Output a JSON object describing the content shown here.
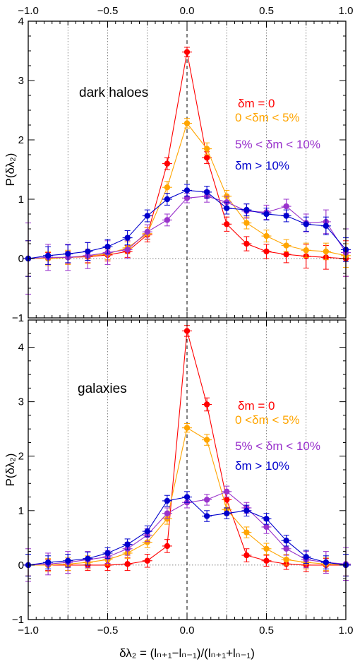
{
  "chart_data": [
    {
      "type": "line",
      "panel": "top",
      "annotation": "dark haloes",
      "ylabel": "P(δλ₂)",
      "xlabel": "",
      "xlim": [
        -1.0,
        1.0
      ],
      "ylim": [
        -1,
        4
      ],
      "x_ticks": [
        -1.0,
        -0.5,
        0.0,
        0.5,
        1.0
      ],
      "x_tick_labels": [
        "−1.0",
        "−0.5",
        "0.0",
        "0.5",
        "1.0"
      ],
      "y_ticks": [
        -1,
        0,
        1,
        2,
        3,
        4
      ],
      "y_tick_labels": [
        "−1",
        "0",
        "1",
        "2",
        "3",
        "4"
      ],
      "x": [
        -1.0,
        -0.875,
        -0.75,
        -0.625,
        -0.5,
        -0.375,
        -0.25,
        -0.125,
        0.0,
        0.125,
        0.25,
        0.375,
        0.5,
        0.625,
        0.75,
        0.875,
        1.0
      ],
      "series": [
        {
          "name": "δm = 0",
          "color": "#ff0000",
          "values": [
            0.0,
            0.0,
            0.02,
            0.03,
            0.06,
            0.12,
            0.4,
            1.6,
            3.48,
            1.7,
            0.58,
            0.25,
            0.12,
            0.07,
            0.04,
            0.02,
            0.0
          ],
          "yerr": [
            0.3,
            0.1,
            0.1,
            0.1,
            0.1,
            0.1,
            0.12,
            0.1,
            0.08,
            0.1,
            0.12,
            0.12,
            0.12,
            0.14,
            0.2,
            0.2,
            0.3
          ]
        },
        {
          "name": "0 <δm < 5%",
          "color": "#ffa500",
          "values": [
            0.0,
            0.0,
            0.02,
            0.04,
            0.08,
            0.18,
            0.42,
            1.2,
            2.28,
            1.85,
            1.05,
            0.6,
            0.38,
            0.22,
            0.14,
            0.12,
            0.05
          ],
          "yerr": [
            0.3,
            0.12,
            0.12,
            0.12,
            0.1,
            0.1,
            0.1,
            0.1,
            0.08,
            0.1,
            0.1,
            0.1,
            0.1,
            0.1,
            0.12,
            0.14,
            0.2
          ]
        },
        {
          "name": "5% < δm < 10%",
          "color": "#9932cc",
          "values": [
            0.0,
            0.02,
            0.02,
            0.05,
            0.1,
            0.15,
            0.45,
            0.65,
            1.02,
            1.05,
            0.95,
            0.8,
            0.78,
            0.88,
            0.6,
            0.62,
            0.1
          ],
          "yerr": [
            0.6,
            0.22,
            0.22,
            0.22,
            0.2,
            0.15,
            0.12,
            0.1,
            0.08,
            0.1,
            0.1,
            0.12,
            0.12,
            0.12,
            0.15,
            0.2,
            0.4
          ]
        },
        {
          "name": "δm > 10%",
          "color": "#0000cd",
          "values": [
            0.0,
            0.05,
            0.08,
            0.12,
            0.2,
            0.35,
            0.72,
            1.0,
            1.15,
            1.12,
            0.85,
            0.82,
            0.75,
            0.72,
            0.58,
            0.55,
            0.15
          ],
          "yerr": [
            0.3,
            0.15,
            0.15,
            0.15,
            0.12,
            0.12,
            0.1,
            0.1,
            0.1,
            0.1,
            0.1,
            0.1,
            0.1,
            0.1,
            0.12,
            0.15,
            0.2
          ]
        }
      ]
    },
    {
      "type": "line",
      "panel": "bottom",
      "annotation": "galaxies",
      "ylabel": "P(δλ₂)",
      "xlabel": "δλ₂ = (lₙ₊₁−lₙ₋₁)/(lₙ₊₁+lₙ₋₁)",
      "xlim": [
        -1.0,
        1.0
      ],
      "ylim": [
        -1,
        4.5
      ],
      "x_ticks": [
        -1.0,
        -0.5,
        0.0,
        0.5,
        1.0
      ],
      "x_tick_labels": [
        "−1.0",
        "−0.5",
        "0.0",
        "0.5",
        "1.0"
      ],
      "y_ticks": [
        -1,
        0,
        1,
        2,
        3,
        4
      ],
      "y_tick_labels": [
        "−1",
        "0",
        "1",
        "2",
        "3",
        "4"
      ],
      "x": [
        -1.0,
        -0.875,
        -0.75,
        -0.625,
        -0.5,
        -0.375,
        -0.25,
        -0.125,
        0.0,
        0.125,
        0.25,
        0.375,
        0.5,
        0.625,
        0.75,
        0.875,
        1.0
      ],
      "series": [
        {
          "name": "δm = 0",
          "color": "#ff0000",
          "values": [
            0.0,
            0.0,
            0.0,
            0.0,
            0.0,
            0.02,
            0.08,
            0.35,
            4.3,
            2.95,
            1.2,
            0.18,
            0.08,
            0.02,
            0.0,
            0.0,
            0.0
          ],
          "yerr": [
            0.2,
            0.1,
            0.1,
            0.1,
            0.1,
            0.12,
            0.12,
            0.12,
            0.1,
            0.12,
            0.15,
            0.12,
            0.1,
            0.1,
            0.12,
            0.12,
            0.2
          ]
        },
        {
          "name": "0 <δm < 5%",
          "color": "#ffa500",
          "values": [
            0.0,
            0.0,
            0.02,
            0.05,
            0.1,
            0.22,
            0.42,
            0.85,
            2.52,
            2.3,
            1.02,
            0.6,
            0.3,
            0.1,
            0.05,
            0.02,
            0.0
          ],
          "yerr": [
            0.2,
            0.12,
            0.12,
            0.12,
            0.1,
            0.1,
            0.1,
            0.1,
            0.08,
            0.1,
            0.1,
            0.1,
            0.1,
            0.1,
            0.12,
            0.12,
            0.2
          ]
        },
        {
          "name": "5% < δm < 10%",
          "color": "#9932cc",
          "values": [
            0.0,
            0.02,
            0.05,
            0.1,
            0.15,
            0.3,
            0.55,
            0.95,
            1.15,
            1.2,
            1.35,
            1.05,
            0.7,
            0.3,
            0.1,
            0.05,
            0.02
          ],
          "yerr": [
            0.3,
            0.2,
            0.2,
            0.15,
            0.12,
            0.12,
            0.12,
            0.1,
            0.1,
            0.1,
            0.1,
            0.1,
            0.12,
            0.12,
            0.15,
            0.2,
            0.3
          ]
        },
        {
          "name": "δm > 10%",
          "color": "#0000cd",
          "values": [
            0.0,
            0.05,
            0.08,
            0.12,
            0.22,
            0.38,
            0.62,
            1.18,
            1.25,
            0.9,
            0.95,
            1.0,
            0.85,
            0.45,
            0.15,
            0.05,
            0.0
          ],
          "yerr": [
            0.2,
            0.12,
            0.12,
            0.12,
            0.1,
            0.1,
            0.1,
            0.1,
            0.1,
            0.1,
            0.1,
            0.1,
            0.1,
            0.1,
            0.12,
            0.12,
            0.2
          ]
        }
      ]
    }
  ]
}
